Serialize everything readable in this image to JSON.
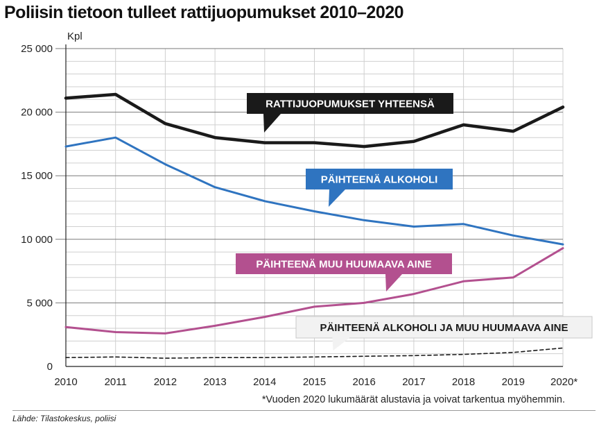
{
  "title": "Poliisin tietoon tulleet rattijuopumukset 2010–2020",
  "footnote": "*Vuoden 2020 lukumäärät alustavia ja voivat tarkentua myöhemmin.",
  "source": "Lähde: Tilastokeskus, poliisi",
  "chart_data": {
    "type": "line",
    "title": "Poliisin tietoon tulleet rattijuopumukset 2010–2020",
    "unit_label": "Kpl",
    "x": [
      "2010",
      "2011",
      "2012",
      "2013",
      "2014",
      "2015",
      "2016",
      "2017",
      "2018",
      "2019",
      "2020*"
    ],
    "y_ticks": [
      0,
      5000,
      10000,
      15000,
      20000,
      25000
    ],
    "y_tick_labels": [
      "0",
      "5 000",
      "10 000",
      "15 000",
      "20 000",
      "25 000"
    ],
    "ylim": [
      0,
      25000
    ],
    "grid": true,
    "series": [
      {
        "name": "RATTIJUOPUMUKSET YHTEENSÄ",
        "color": "#1a1a1a",
        "style": "solid",
        "values": [
          21100,
          21400,
          19100,
          18000,
          17600,
          17600,
          17300,
          17700,
          19000,
          18500,
          20400
        ]
      },
      {
        "name": "PÄIHTEENÄ ALKOHOLI",
        "color": "#2f74c0",
        "style": "solid",
        "values": [
          17300,
          18000,
          15900,
          14100,
          13000,
          12200,
          11500,
          11000,
          11200,
          10300,
          9600
        ]
      },
      {
        "name": "PÄIHTEENÄ MUU HUUMAAVA AINE",
        "color": "#b3508f",
        "style": "solid",
        "values": [
          3100,
          2700,
          2600,
          3200,
          3900,
          4700,
          5000,
          5700,
          6700,
          7000,
          9300
        ]
      },
      {
        "name": "PÄIHTEENÄ ALKOHOLI JA MUU HUUMAAVA AINE",
        "color": "#1a1a1a",
        "style": "dashed",
        "values": [
          700,
          750,
          650,
          700,
          700,
          750,
          800,
          850,
          950,
          1100,
          1450
        ]
      }
    ]
  }
}
